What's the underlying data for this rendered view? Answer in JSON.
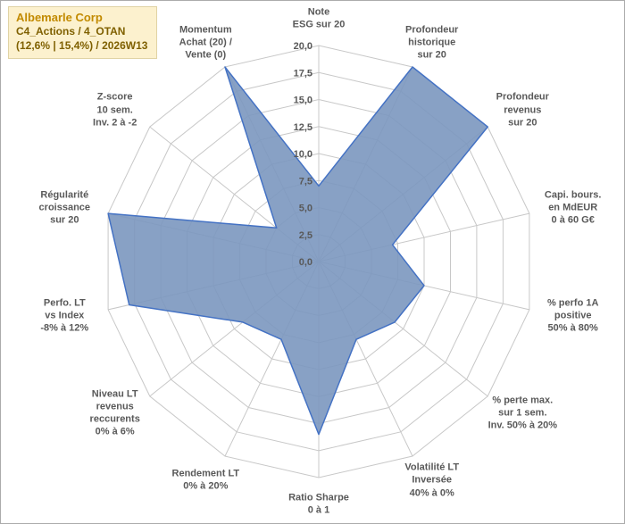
{
  "title_box": {
    "line1": "Albemarle Corp",
    "line2": "C4_Actions / 4_OTAN",
    "line3": "(12,6% | 15,4%) / 2026W13",
    "background": "#fcf1ce",
    "line1_color": "#c28a00",
    "line23_color": "#7f6000"
  },
  "chart_data": {
    "type": "radar",
    "rmin": 0,
    "rmax": 20,
    "rstep": 2.5,
    "grid": true,
    "tick_labels": [
      "0,0",
      "2,5",
      "5,0",
      "7,5",
      "10,0",
      "12,5",
      "15,0",
      "17,5",
      "20,0"
    ],
    "axes": [
      {
        "label": [
          "Note",
          "ESG sur 20"
        ],
        "value": 7
      },
      {
        "label": [
          "Profondeur",
          "historique",
          "sur 20"
        ],
        "value": 20
      },
      {
        "label": [
          "Profondeur",
          "revenus",
          "sur 20"
        ],
        "value": 20
      },
      {
        "label": [
          "Capi. bours.",
          "en MdEUR",
          "0 à 60 G€"
        ],
        "value": 7
      },
      {
        "label": [
          "% perfo 1A",
          "positive",
          "50% à 80%"
        ],
        "value": 10
      },
      {
        "label": [
          "% perte max.",
          "sur 1 sem.",
          "Inv. 50% à 20%"
        ],
        "value": 9
      },
      {
        "label": [
          "Volatilité LT",
          "Inversée",
          "40% à 0%"
        ],
        "value": 8
      },
      {
        "label": [
          "Ratio Sharpe",
          "0 à 1"
        ],
        "value": 16
      },
      {
        "label": [
          "Rendement LT",
          "0% à 20%"
        ],
        "value": 8
      },
      {
        "label": [
          "Niveau LT",
          "revenus",
          "reccurents",
          "0% à 6%"
        ],
        "value": 9
      },
      {
        "label": [
          "Perfo. LT",
          "vs Index",
          "-8% à 12%"
        ],
        "value": 18
      },
      {
        "label": [
          "Régularité",
          "croissance",
          "sur 20"
        ],
        "value": 20
      },
      {
        "label": [
          "Z-score",
          "10 sem.",
          "Inv. 2 à -2"
        ],
        "value": 5
      },
      {
        "label": [
          "Momentum",
          "Achat (20) /",
          "Vente (0)"
        ],
        "value": 20
      }
    ],
    "series_fill": "#7b97bf",
    "series_stroke": "#4472c4",
    "grid_color": "#c8c8c8",
    "label_color": "#595959"
  }
}
